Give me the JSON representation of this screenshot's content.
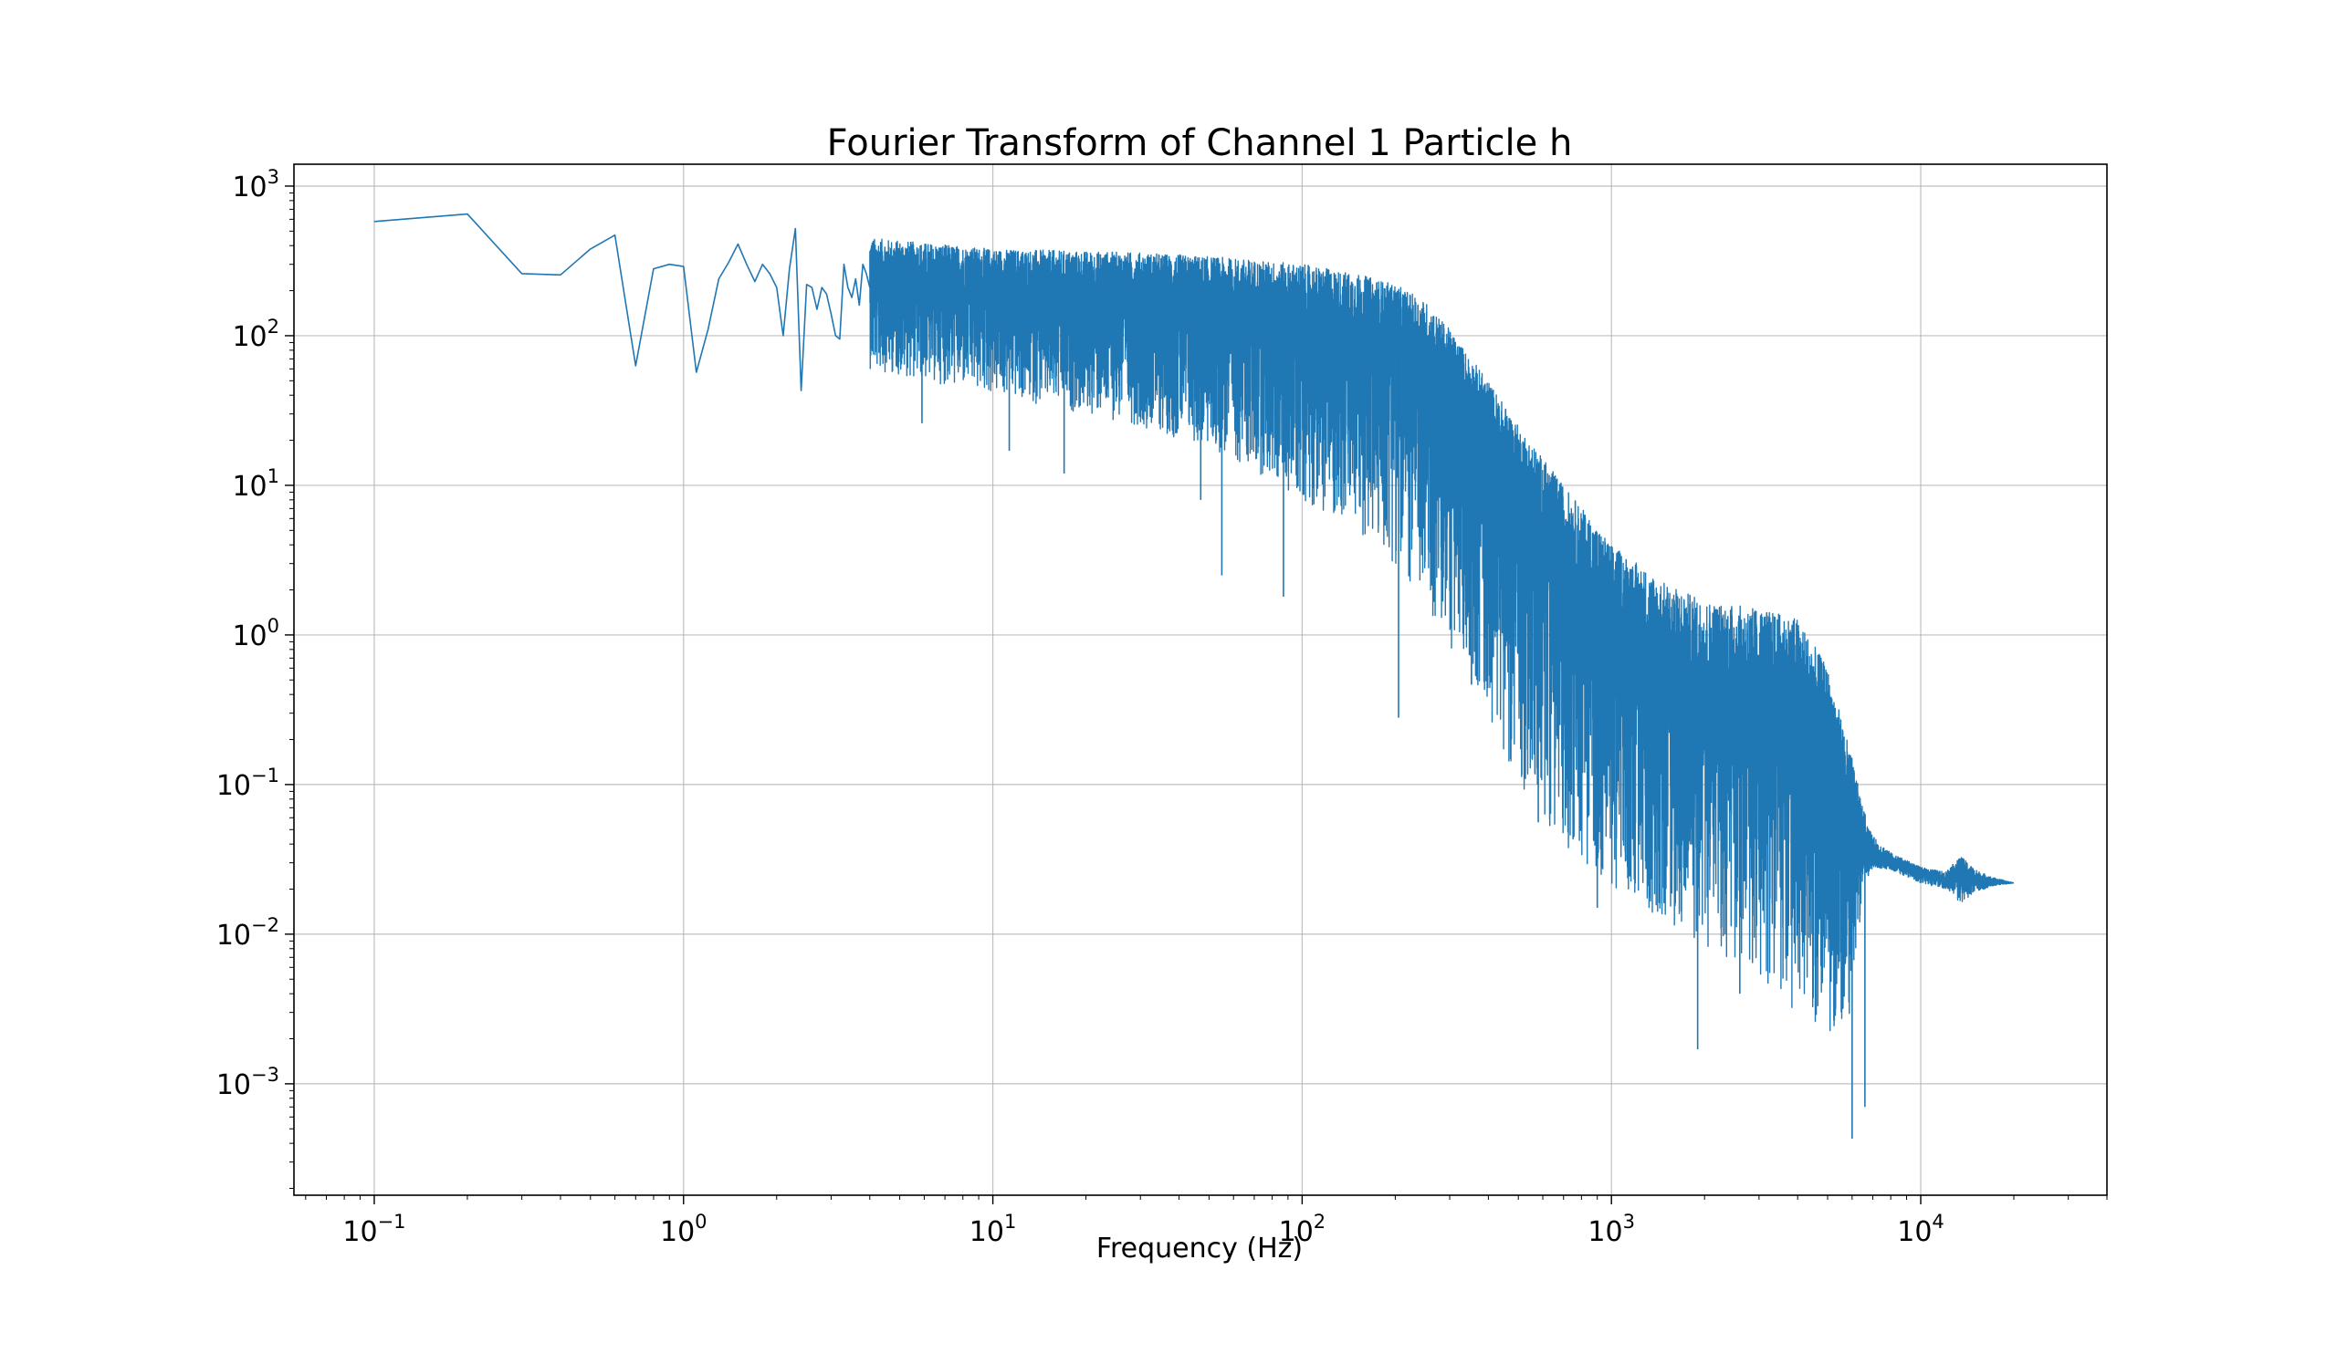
{
  "chart_data": {
    "type": "line",
    "title": "Fourier Transform of Channel 1 Particle h",
    "xlabel": "Frequency (Hz)",
    "ylabel": "",
    "xscale": "log",
    "yscale": "log",
    "xlim": [
      0.055,
      40000
    ],
    "ylim": [
      0.00018,
      1400
    ],
    "grid": true,
    "color": "#1f77b4",
    "x_ticks": [
      {
        "value": 0.1,
        "base": "10",
        "exp": "−1"
      },
      {
        "value": 1,
        "base": "10",
        "exp": "0"
      },
      {
        "value": 10,
        "base": "10",
        "exp": "1"
      },
      {
        "value": 100,
        "base": "10",
        "exp": "2"
      },
      {
        "value": 1000,
        "base": "10",
        "exp": "3"
      },
      {
        "value": 10000,
        "base": "10",
        "exp": "4"
      }
    ],
    "y_ticks": [
      {
        "value": 0.001,
        "base": "10",
        "exp": "−3"
      },
      {
        "value": 0.01,
        "base": "10",
        "exp": "−2"
      },
      {
        "value": 0.1,
        "base": "10",
        "exp": "−1"
      },
      {
        "value": 1,
        "base": "10",
        "exp": "0"
      },
      {
        "value": 10,
        "base": "10",
        "exp": "1"
      },
      {
        "value": 100,
        "base": "10",
        "exp": "2"
      },
      {
        "value": 1000,
        "base": "10",
        "exp": "3"
      }
    ],
    "series": [
      {
        "low_freq_points": {
          "x": [
            0.1,
            0.2,
            0.3,
            0.4,
            0.5,
            0.6,
            0.7,
            0.8,
            0.9,
            1.0,
            1.1,
            1.2,
            1.3,
            1.4,
            1.5,
            1.6,
            1.7,
            1.8,
            1.9,
            2.0,
            2.1,
            2.2,
            2.3,
            2.4,
            2.5,
            2.6,
            2.7,
            2.8,
            2.9,
            3.0,
            3.1,
            3.2,
            3.3,
            3.4,
            3.5,
            3.6,
            3.7,
            3.8,
            3.9,
            4.0
          ],
          "y": [
            580,
            650,
            260,
            255,
            380,
            470,
            63,
            280,
            300,
            290,
            57,
            110,
            240,
            310,
            410,
            300,
            230,
            300,
            260,
            210,
            100,
            280,
            520,
            43,
            220,
            210,
            150,
            210,
            190,
            140,
            100,
            95,
            300,
            210,
            180,
            240,
            160,
            300,
            260,
            210
          ]
        },
        "envelope": {
          "f": [
            4,
            10,
            30,
            60,
            100,
            150,
            200,
            250,
            300,
            400,
            500,
            700,
            1000,
            1500,
            2000,
            3000,
            4000,
            5000,
            6000,
            6500,
            7000,
            8000,
            10000,
            12000,
            13500,
            15000,
            17000,
            20000
          ],
          "upper": [
            450,
            380,
            360,
            330,
            300,
            260,
            220,
            170,
            110,
            50,
            25,
            10,
            4,
            2.2,
            1.7,
            1.5,
            1.3,
            0.6,
            0.15,
            0.07,
            0.045,
            0.035,
            0.028,
            0.026,
            0.033,
            0.027,
            0.024,
            0.022
          ],
          "mid": [
            200,
            180,
            150,
            130,
            110,
            90,
            75,
            55,
            35,
            15,
            7,
            2.5,
            1,
            0.45,
            0.32,
            0.28,
            0.24,
            0.12,
            0.05,
            0.035,
            0.03,
            0.03,
            0.025,
            0.023,
            0.026,
            0.022,
            0.022,
            0.022
          ],
          "lower": [
            60,
            40,
            25,
            15,
            8,
            5,
            3,
            1.5,
            0.8,
            0.3,
            0.1,
            0.04,
            0.02,
            0.012,
            0.008,
            0.005,
            0.003,
            0.002,
            0.003,
            0.02,
            0.028,
            0.027,
            0.022,
            0.02,
            0.016,
            0.019,
            0.021,
            0.022
          ]
        },
        "notable_dips": {
          "x": [
            5.9,
            11.3,
            17,
            47,
            55,
            87,
            205,
            580,
            900,
            1500,
            1900,
            2600,
            6000,
            6600
          ],
          "y": [
            26,
            17,
            12,
            8,
            2.5,
            1.8,
            0.28,
            0.056,
            0.015,
            0.02,
            0.0017,
            0.004,
            0.00043,
            0.0007
          ]
        }
      }
    ]
  }
}
